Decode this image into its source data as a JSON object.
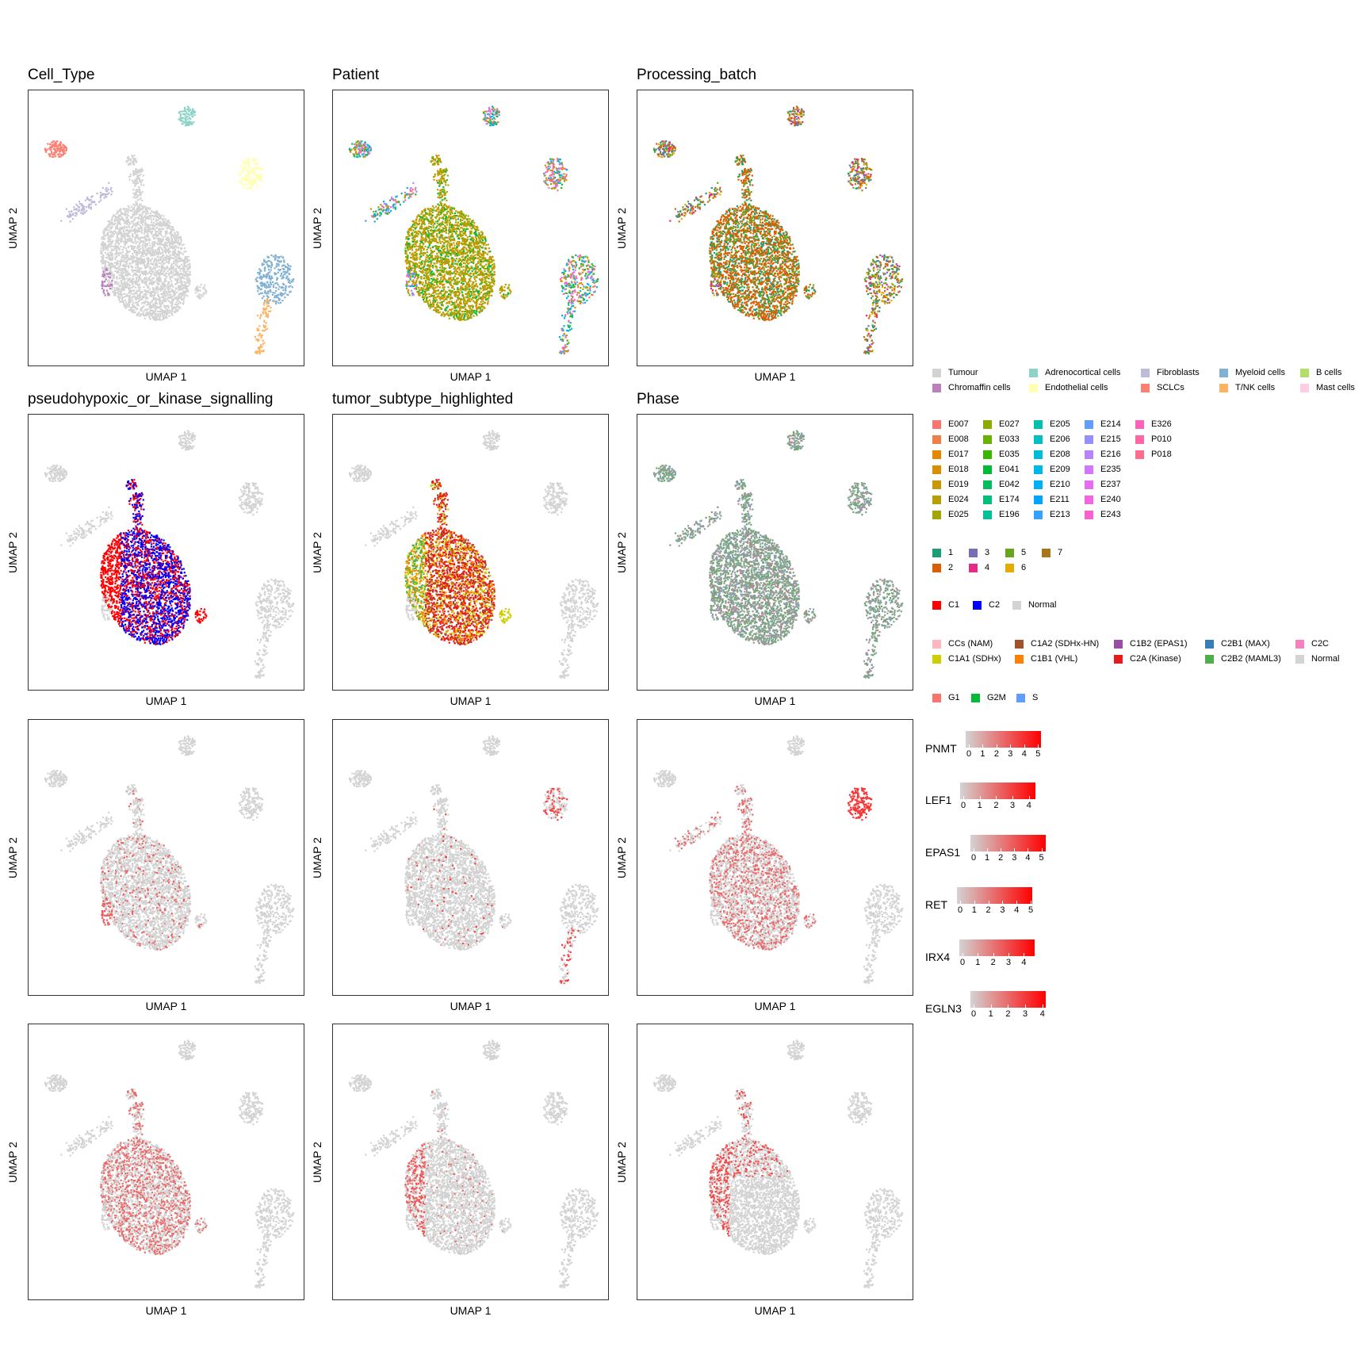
{
  "panels": [
    {
      "title": "Cell_Type",
      "xlabel": "UMAP 1",
      "ylabel": "UMAP 2",
      "mode": "celltype"
    },
    {
      "title": "Patient",
      "xlabel": "UMAP 1",
      "ylabel": "UMAP 2",
      "mode": "patient"
    },
    {
      "title": "Processing_batch",
      "xlabel": "UMAP 1",
      "ylabel": "UMAP 2",
      "mode": "batch"
    },
    {
      "title": "pseudohypoxic_or_kinase_signalling",
      "xlabel": "UMAP 1",
      "ylabel": "UMAP 2",
      "mode": "signal"
    },
    {
      "title": "tumor_subtype_highlighted",
      "xlabel": "UMAP 1",
      "ylabel": "UMAP 2",
      "mode": "subtype"
    },
    {
      "title": "Phase",
      "xlabel": "UMAP 1",
      "ylabel": "UMAP 2",
      "mode": "phase"
    },
    {
      "title": "",
      "xlabel": "UMAP 1",
      "ylabel": "UMAP 2",
      "mode": "gene",
      "gene": "PNMT"
    },
    {
      "title": "",
      "xlabel": "UMAP 1",
      "ylabel": "UMAP 2",
      "mode": "gene",
      "gene": "LEF1"
    },
    {
      "title": "",
      "xlabel": "UMAP 1",
      "ylabel": "UMAP 2",
      "mode": "gene",
      "gene": "EPAS1"
    },
    {
      "title": "",
      "xlabel": "UMAP 1",
      "ylabel": "UMAP 2",
      "mode": "gene",
      "gene": "RET"
    },
    {
      "title": "",
      "xlabel": "UMAP 1",
      "ylabel": "UMAP 2",
      "mode": "gene",
      "gene": "IRX4"
    },
    {
      "title": "",
      "xlabel": "UMAP 1",
      "ylabel": "UMAP 2",
      "mode": "gene",
      "gene": "EGLN3"
    }
  ],
  "legends": {
    "cell_type": [
      {
        "label": "Tumour",
        "color": "#d3d3d3"
      },
      {
        "label": "Adrenocortical cells",
        "color": "#8dd3c7"
      },
      {
        "label": "Fibroblasts",
        "color": "#bebada"
      },
      {
        "label": "Myeloid cells",
        "color": "#80b1d3"
      },
      {
        "label": "B cells",
        "color": "#b3de69"
      },
      {
        "label": "Chromaffin cells",
        "color": "#bc80bd"
      },
      {
        "label": "Endothelial cells",
        "color": "#ffffb3"
      },
      {
        "label": "SCLCs",
        "color": "#fb8072"
      },
      {
        "label": "T/NK cells",
        "color": "#fdb462"
      },
      {
        "label": "Mast cells",
        "color": "#fccde5"
      }
    ],
    "patient": [
      {
        "label": "E007",
        "color": "#f8766d"
      },
      {
        "label": "E008",
        "color": "#f07e4a"
      },
      {
        "label": "E017",
        "color": "#e58700"
      },
      {
        "label": "E018",
        "color": "#d89000"
      },
      {
        "label": "E019",
        "color": "#c99800"
      },
      {
        "label": "E024",
        "color": "#b79f00"
      },
      {
        "label": "E025",
        "color": "#a3a500"
      },
      {
        "label": "E027",
        "color": "#8bab00"
      },
      {
        "label": "E033",
        "color": "#6bb100"
      },
      {
        "label": "E035",
        "color": "#39b600"
      },
      {
        "label": "E041",
        "color": "#00ba38"
      },
      {
        "label": "E042",
        "color": "#00bd5c"
      },
      {
        "label": "E174",
        "color": "#00c07b"
      },
      {
        "label": "E196",
        "color": "#00c097"
      },
      {
        "label": "E205",
        "color": "#00c0af"
      },
      {
        "label": "E206",
        "color": "#00bfc4"
      },
      {
        "label": "E208",
        "color": "#00bcd8"
      },
      {
        "label": "E209",
        "color": "#00b8e7"
      },
      {
        "label": "E210",
        "color": "#00b0f6"
      },
      {
        "label": "E211",
        "color": "#00a5ff"
      },
      {
        "label": "E213",
        "color": "#35a2ff"
      },
      {
        "label": "E214",
        "color": "#619cff"
      },
      {
        "label": "E215",
        "color": "#9590ff"
      },
      {
        "label": "E216",
        "color": "#b983ff"
      },
      {
        "label": "E235",
        "color": "#d277ff"
      },
      {
        "label": "E237",
        "color": "#e76bf3"
      },
      {
        "label": "E240",
        "color": "#f564e3"
      },
      {
        "label": "E243",
        "color": "#fd61d1"
      },
      {
        "label": "E326",
        "color": "#ff62bc"
      },
      {
        "label": "P010",
        "color": "#ff67a4"
      },
      {
        "label": "P018",
        "color": "#fe6e8a"
      }
    ],
    "batch": [
      {
        "label": "1",
        "color": "#1b9e77"
      },
      {
        "label": "2",
        "color": "#d95f02"
      },
      {
        "label": "3",
        "color": "#7570b3"
      },
      {
        "label": "4",
        "color": "#e7298a"
      },
      {
        "label": "5",
        "color": "#66a61e"
      },
      {
        "label": "6",
        "color": "#e6ab02"
      },
      {
        "label": "7",
        "color": "#a6761d"
      }
    ],
    "signal": [
      {
        "label": "C1",
        "color": "#ff0000"
      },
      {
        "label": "C2",
        "color": "#0000ff"
      },
      {
        "label": "Normal",
        "color": "#d3d3d3"
      }
    ],
    "subtype": [
      {
        "label": "CCs (NAM)",
        "color": "#ffb6c1"
      },
      {
        "label": "C1A2 (SDHx-HN)",
        "color": "#a0522d"
      },
      {
        "label": "C1B2 (EPAS1)",
        "color": "#984ea3"
      },
      {
        "label": "C2B1 (MAX)",
        "color": "#377eb8"
      },
      {
        "label": "C2C",
        "color": "#f781bf"
      },
      {
        "label": "C1A1 (SDHx)",
        "color": "#cdcd00"
      },
      {
        "label": "C1B1 (VHL)",
        "color": "#ff7f00"
      },
      {
        "label": "C2A (Kinase)",
        "color": "#e41a1c"
      },
      {
        "label": "C2B2 (MAML3)",
        "color": "#4daf4a"
      },
      {
        "label": "Normal",
        "color": "#d3d3d3"
      }
    ],
    "phase": [
      {
        "label": "G1",
        "color": "#f8766d"
      },
      {
        "label": "G2M",
        "color": "#00ba38"
      },
      {
        "label": "S",
        "color": "#619cff"
      }
    ]
  },
  "gene_scales": [
    {
      "gene": "PNMT",
      "ticks": [
        "0",
        "1",
        "2",
        "3",
        "4",
        "5"
      ],
      "max": 5.1
    },
    {
      "gene": "LEF1",
      "ticks": [
        "0",
        "1",
        "2",
        "3",
        "4"
      ],
      "max": 4.3
    },
    {
      "gene": "EPAS1",
      "ticks": [
        "0",
        "1",
        "2",
        "3",
        "4",
        "5"
      ],
      "max": 5.2
    },
    {
      "gene": "RET",
      "ticks": [
        "0",
        "1",
        "2",
        "3",
        "4",
        "5"
      ],
      "max": 5.0
    },
    {
      "gene": "IRX4",
      "ticks": [
        "0",
        "1",
        "2",
        "3",
        "4"
      ],
      "max": 4.6
    },
    {
      "gene": "EGLN3",
      "ticks": [
        "0",
        "1",
        "2",
        "3",
        "4"
      ],
      "max": 4.1
    }
  ],
  "chart_data": {
    "type": "scatter",
    "description_axes": {
      "xlabel": "UMAP 1",
      "ylabel": "UMAP 2"
    },
    "clusters": [
      {
        "cell_type": "Tumour",
        "center": [
          0.42,
          0.6
        ],
        "n": 2600
      },
      {
        "cell_type": "Adrenocortical cells",
        "center": [
          0.57,
          0.09
        ],
        "n": 90
      },
      {
        "cell_type": "SCLCs",
        "center": [
          0.09,
          0.2
        ],
        "n": 110
      },
      {
        "cell_type": "Endothelial cells",
        "center": [
          0.8,
          0.3
        ],
        "n": 160
      },
      {
        "cell_type": "Fibroblasts",
        "center": [
          0.2,
          0.41
        ],
        "n": 110
      },
      {
        "cell_type": "Myeloid cells",
        "center": [
          0.88,
          0.7
        ],
        "n": 300
      },
      {
        "cell_type": "T/NK cells",
        "center": [
          0.82,
          0.9
        ],
        "n": 90
      },
      {
        "cell_type": "Chromaffin cells",
        "center": [
          0.28,
          0.68
        ],
        "n": 50
      }
    ],
    "expression_colors": {
      "low": "#d3d3d3",
      "high": "#ff0000"
    }
  }
}
